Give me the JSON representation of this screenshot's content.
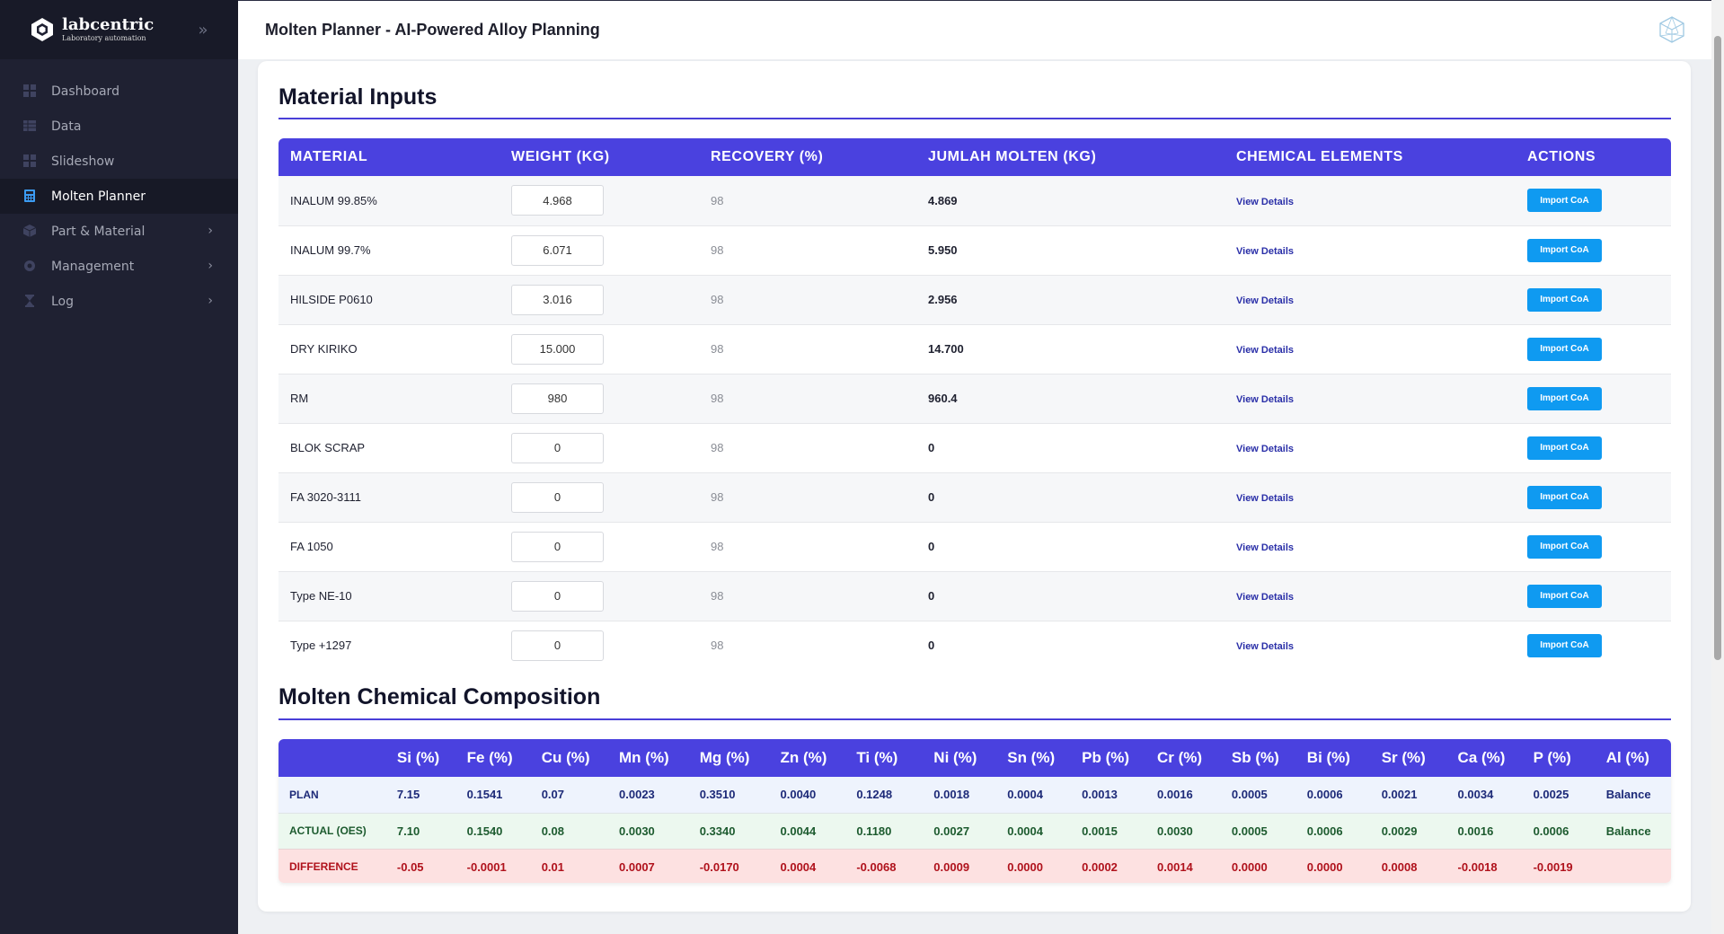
{
  "brand": {
    "name": "labcentric",
    "subtitle": "Laboratory automation"
  },
  "sidebar": {
    "items": [
      {
        "label": "Dashboard",
        "icon": "dashboard-icon",
        "active": false,
        "has_children": false
      },
      {
        "label": "Data",
        "icon": "table-icon",
        "active": false,
        "has_children": false
      },
      {
        "label": "Slideshow",
        "icon": "slideshow-icon",
        "active": false,
        "has_children": false
      },
      {
        "label": "Molten Planner",
        "icon": "calculator-icon",
        "active": true,
        "has_children": false
      },
      {
        "label": "Part & Material",
        "icon": "cube-icon",
        "active": false,
        "has_children": true
      },
      {
        "label": "Management",
        "icon": "gear-icon",
        "active": false,
        "has_children": true
      },
      {
        "label": "Log",
        "icon": "hourglass-icon",
        "active": false,
        "has_children": true
      }
    ]
  },
  "header": {
    "title": "Molten Planner - AI-Powered Alloy Planning"
  },
  "materials": {
    "title": "Material Inputs",
    "columns": [
      "MATERIAL",
      "WEIGHT (KG)",
      "RECOVERY (%)",
      "JUMLAH MOLTEN (KG)",
      "CHEMICAL ELEMENTS",
      "ACTIONS"
    ],
    "view_label": "View Details",
    "import_label": "Import CoA",
    "rows": [
      {
        "name": "INALUM 99.85%",
        "weight": "4.968",
        "recovery": "98",
        "molten": "4.869"
      },
      {
        "name": "INALUM 99.7%",
        "weight": "6.071",
        "recovery": "98",
        "molten": "5.950"
      },
      {
        "name": "HILSIDE P0610",
        "weight": "3.016",
        "recovery": "98",
        "molten": "2.956"
      },
      {
        "name": "DRY KIRIKO",
        "weight": "15.000",
        "recovery": "98",
        "molten": "14.700"
      },
      {
        "name": "RM",
        "weight": "980",
        "recovery": "98",
        "molten": "960.4"
      },
      {
        "name": "BLOK SCRAP",
        "weight": "0",
        "recovery": "98",
        "molten": "0"
      },
      {
        "name": "FA 3020-3111",
        "weight": "0",
        "recovery": "98",
        "molten": "0"
      },
      {
        "name": "FA 1050",
        "weight": "0",
        "recovery": "98",
        "molten": "0"
      },
      {
        "name": "Type NE-10",
        "weight": "0",
        "recovery": "98",
        "molten": "0"
      },
      {
        "name": "Type +1297",
        "weight": "0",
        "recovery": "98",
        "molten": "0"
      }
    ]
  },
  "composition": {
    "title": "Molten Chemical Composition",
    "columns": [
      "",
      "Si (%)",
      "Fe (%)",
      "Cu (%)",
      "Mn (%)",
      "Mg (%)",
      "Zn (%)",
      "Ti (%)",
      "Ni (%)",
      "Sn (%)",
      "Pb (%)",
      "Cr (%)",
      "Sb (%)",
      "Bi (%)",
      "Sr (%)",
      "Ca (%)",
      "P (%)",
      "Al (%)"
    ],
    "rows": [
      {
        "label": "PLAN",
        "type": "plan",
        "values": [
          "7.15",
          "0.1541",
          "0.07",
          "0.0023",
          "0.3510",
          "0.0040",
          "0.1248",
          "0.0018",
          "0.0004",
          "0.0013",
          "0.0016",
          "0.0005",
          "0.0006",
          "0.0021",
          "0.0034",
          "0.0025",
          "Balance"
        ]
      },
      {
        "label": "ACTUAL (OES)",
        "type": "actual",
        "values": [
          "7.10",
          "0.1540",
          "0.08",
          "0.0030",
          "0.3340",
          "0.0044",
          "0.1180",
          "0.0027",
          "0.0004",
          "0.0015",
          "0.0030",
          "0.0005",
          "0.0006",
          "0.0029",
          "0.0016",
          "0.0006",
          "Balance"
        ]
      },
      {
        "label": "DIFFERENCE",
        "type": "diff",
        "values": [
          "-0.05",
          "-0.0001",
          "0.01",
          "0.0007",
          "-0.0170",
          "0.0004",
          "-0.0068",
          "0.0009",
          "0.0000",
          "0.0002",
          "0.0014",
          "0.0000",
          "0.0000",
          "0.0008",
          "-0.0018",
          "-0.0019",
          ""
        ]
      }
    ]
  },
  "colors": {
    "accent": "#4a41df",
    "button": "#0f9af1",
    "sidebar_bg": "#1f2132",
    "active_icon": "#3b9bf2"
  }
}
